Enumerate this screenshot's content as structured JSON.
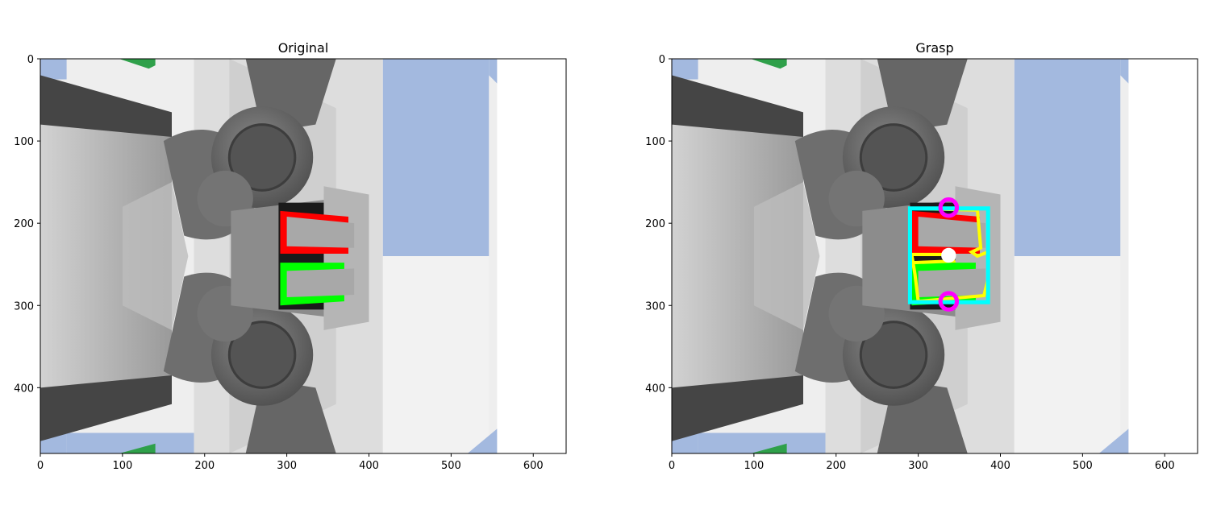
{
  "panels": [
    {
      "title": "Original",
      "xticks": [
        "0",
        "100",
        "200",
        "300",
        "400",
        "500",
        "600"
      ],
      "yticks": [
        "0",
        "100",
        "200",
        "300",
        "400"
      ]
    },
    {
      "title": "Grasp",
      "xticks": [
        "0",
        "100",
        "200",
        "300",
        "400",
        "500",
        "600"
      ],
      "yticks": [
        "0",
        "100",
        "200",
        "300",
        "400"
      ]
    }
  ],
  "colors": {
    "floor_blue": "#a3b9df",
    "floor_white": "#eeeeee",
    "gripper_dark": "#454545",
    "gripper_body": "#b7b7b7",
    "arm_gray": "#6e6e6e",
    "tray_gray": "#8c8c8c",
    "object_red": "#ff0000",
    "object_green": "#00ff00",
    "object_gray": "#a8a8a8",
    "grasp_box": "#00ffff",
    "grasp_contour": "#ffff00",
    "grasp_points": "#ff00ff",
    "grasp_center": "#ffffff"
  }
}
